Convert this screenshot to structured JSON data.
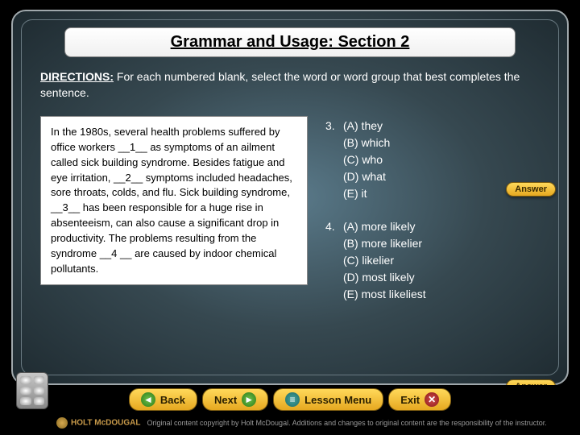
{
  "title": "Grammar and Usage: Section 2",
  "directions": {
    "label": "DIRECTIONS:",
    "text": " For each numbered blank, select the word or word group that best completes the sentence."
  },
  "passage": "In the 1980s, several health problems suffered by office workers __1__ as symptoms of an ailment called sick building syndrome. Besides fatigue and eye irritation, __2__ symptoms included headaches, sore throats, colds, and flu. Sick building syndrome, __3__ has been responsible for a huge rise in absenteeism, can also cause a significant drop in productivity. The problems resulting from the syndrome __4 __ are caused by indoor chemical pollutants.",
  "questions": [
    {
      "num": "3.",
      "options": [
        "(A) they",
        "(B) which",
        "(C) who",
        "(D) what",
        "(E) it"
      ]
    },
    {
      "num": "4.",
      "options": [
        "(A) more likely",
        "(B) more likelier",
        "(C) likelier",
        "(D) most likely",
        "(E) most likeliest"
      ]
    }
  ],
  "answer_label": "Answer",
  "nav": {
    "back": "Back",
    "next": "Next",
    "lesson": "Lesson Menu",
    "exit": "Exit"
  },
  "copyright": {
    "brand": "HOLT McDOUGAL",
    "text": "Original content copyright by Holt McDougal. Additions and changes to original content are the responsibility of the instructor."
  },
  "colors": {
    "slide_bg_inner": "#5a7a8a",
    "slide_bg_outer": "#1e2a30",
    "button_bg_top": "#ffd95a",
    "button_bg_bottom": "#e6a820",
    "text_light": "#ffffff",
    "text_dark": "#000000"
  }
}
